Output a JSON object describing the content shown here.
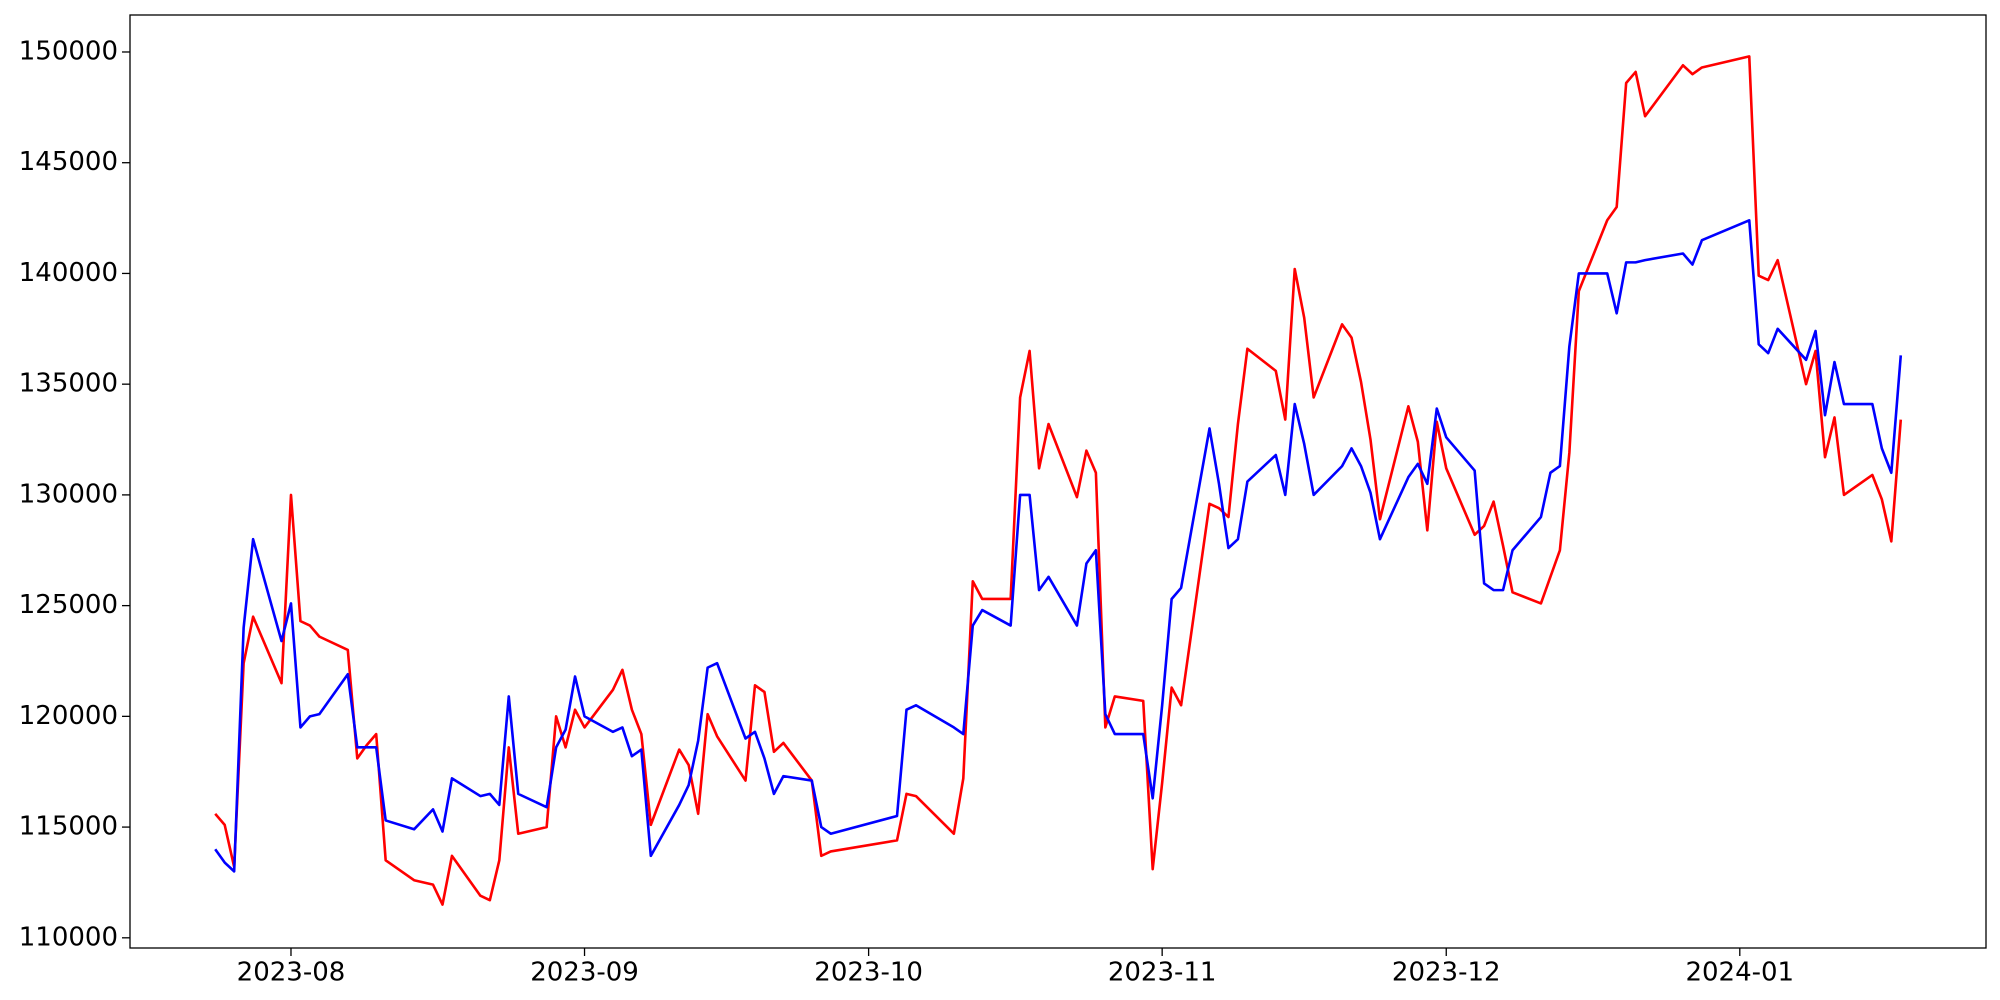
{
  "chart_data": {
    "type": "line",
    "x": [
      "2023-07-24",
      "2023-07-25",
      "2023-07-26",
      "2023-07-27",
      "2023-07-28",
      "2023-07-31",
      "2023-08-01",
      "2023-08-02",
      "2023-08-03",
      "2023-08-04",
      "2023-08-07",
      "2023-08-08",
      "2023-08-09",
      "2023-08-10",
      "2023-08-11",
      "2023-08-14",
      "2023-08-16",
      "2023-08-17",
      "2023-08-18",
      "2023-08-21",
      "2023-08-22",
      "2023-08-23",
      "2023-08-24",
      "2023-08-25",
      "2023-08-28",
      "2023-08-29",
      "2023-08-30",
      "2023-08-31",
      "2023-09-01",
      "2023-09-04",
      "2023-09-05",
      "2023-09-06",
      "2023-09-07",
      "2023-09-08",
      "2023-09-11",
      "2023-09-12",
      "2023-09-13",
      "2023-09-14",
      "2023-09-15",
      "2023-09-18",
      "2023-09-19",
      "2023-09-20",
      "2023-09-21",
      "2023-09-22",
      "2023-09-25",
      "2023-09-26",
      "2023-09-27",
      "2023-10-04",
      "2023-10-05",
      "2023-10-06",
      "2023-10-10",
      "2023-10-11",
      "2023-10-12",
      "2023-10-13",
      "2023-10-16",
      "2023-10-17",
      "2023-10-18",
      "2023-10-19",
      "2023-10-20",
      "2023-10-23",
      "2023-10-24",
      "2023-10-25",
      "2023-10-26",
      "2023-10-27",
      "2023-10-30",
      "2023-10-31",
      "2023-11-01",
      "2023-11-02",
      "2023-11-03",
      "2023-11-06",
      "2023-11-07",
      "2023-11-08",
      "2023-11-09",
      "2023-11-10",
      "2023-11-13",
      "2023-11-14",
      "2023-11-15",
      "2023-11-16",
      "2023-11-17",
      "2023-11-20",
      "2023-11-21",
      "2023-11-22",
      "2023-11-23",
      "2023-11-24",
      "2023-11-27",
      "2023-11-28",
      "2023-11-29",
      "2023-11-30",
      "2023-12-01",
      "2023-12-04",
      "2023-12-05",
      "2023-12-06",
      "2023-12-07",
      "2023-12-08",
      "2023-12-11",
      "2023-12-12",
      "2023-12-13",
      "2023-12-14",
      "2023-12-15",
      "2023-12-18",
      "2023-12-19",
      "2023-12-20",
      "2023-12-21",
      "2023-12-22",
      "2023-12-26",
      "2023-12-27",
      "2023-12-28",
      "2024-01-02",
      "2024-01-03",
      "2024-01-04",
      "2024-01-05",
      "2024-01-08",
      "2024-01-09",
      "2024-01-10",
      "2024-01-11",
      "2024-01-12",
      "2024-01-15",
      "2024-01-16",
      "2024-01-17",
      "2024-01-18"
    ],
    "series": [
      {
        "color": "#ff0000",
        "values": [
          115600,
          115100,
          113200,
          122400,
          124500,
          121500,
          130000,
          124300,
          124100,
          123600,
          123000,
          118100,
          118700,
          119200,
          113500,
          112600,
          112400,
          111500,
          113700,
          111900,
          111700,
          113500,
          118600,
          114700,
          115000,
          120000,
          118600,
          120300,
          119500,
          121200,
          122100,
          120300,
          119200,
          115100,
          118500,
          117800,
          115600,
          120100,
          119100,
          117100,
          121400,
          121100,
          118400,
          118800,
          117100,
          113700,
          113900,
          114400,
          116500,
          116400,
          114700,
          117200,
          126100,
          125300,
          125300,
          134400,
          136500,
          131200,
          133200,
          129900,
          132000,
          131000,
          119500,
          120900,
          120700,
          113100,
          117000,
          121300,
          120500,
          129600,
          129400,
          129000,
          133200,
          136600,
          135600,
          133400,
          140200,
          138000,
          134400,
          137700,
          137100,
          135100,
          132500,
          128900,
          134000,
          132400,
          128400,
          133300,
          131200,
          128200,
          128600,
          129700,
          127700,
          125600,
          125100,
          126300,
          127500,
          131900,
          139200,
          142400,
          143000,
          148600,
          149100,
          147100,
          149400,
          149000,
          149300,
          149800,
          139900,
          139700,
          140600,
          135000,
          136500,
          131700,
          133500,
          130000,
          130900,
          129800,
          127900,
          133400
        ]
      },
      {
        "color": "#0000ff",
        "values": [
          114000,
          113400,
          113000,
          124000,
          128000,
          123400,
          125100,
          119500,
          120000,
          120100,
          121900,
          118600,
          118600,
          118600,
          115300,
          114900,
          115800,
          114800,
          117200,
          116400,
          116500,
          116000,
          120900,
          116500,
          115900,
          118600,
          119400,
          121800,
          120000,
          119300,
          119500,
          118200,
          118500,
          113700,
          116000,
          116900,
          118900,
          122200,
          122400,
          119000,
          119300,
          118100,
          116500,
          117300,
          117100,
          115000,
          114700,
          115500,
          120300,
          120500,
          119500,
          119200,
          124100,
          124800,
          124100,
          130000,
          130000,
          125700,
          126300,
          124100,
          126900,
          127500,
          120100,
          119200,
          119200,
          116300,
          120500,
          125300,
          125800,
          133000,
          130500,
          127600,
          128000,
          130600,
          131800,
          130000,
          134100,
          132300,
          130000,
          131300,
          132100,
          131300,
          130100,
          128000,
          130800,
          131400,
          130500,
          133900,
          132600,
          131100,
          126000,
          125700,
          125700,
          127500,
          129000,
          131000,
          131300,
          136700,
          140000,
          140000,
          138200,
          140500,
          140500,
          140600,
          140900,
          140400,
          141500,
          142400,
          136800,
          136400,
          137500,
          136100,
          137400,
          133600,
          136000,
          134100,
          134100,
          132100,
          131000,
          136300
        ]
      }
    ],
    "xlim": [
      "2023-07-15",
      "2024-01-27"
    ],
    "xticks": [
      {
        "value": "2023-08-01",
        "label": "2023-08"
      },
      {
        "value": "2023-09-01",
        "label": "2023-09"
      },
      {
        "value": "2023-10-01",
        "label": "2023-10"
      },
      {
        "value": "2023-11-01",
        "label": "2023-11"
      },
      {
        "value": "2023-12-01",
        "label": "2023-12"
      },
      {
        "value": "2024-01-01",
        "label": "2024-01"
      }
    ],
    "ylim": [
      109540,
      151670
    ],
    "yticks": [
      110000,
      115000,
      120000,
      125000,
      130000,
      135000,
      140000,
      145000,
      150000
    ],
    "grid": false
  }
}
